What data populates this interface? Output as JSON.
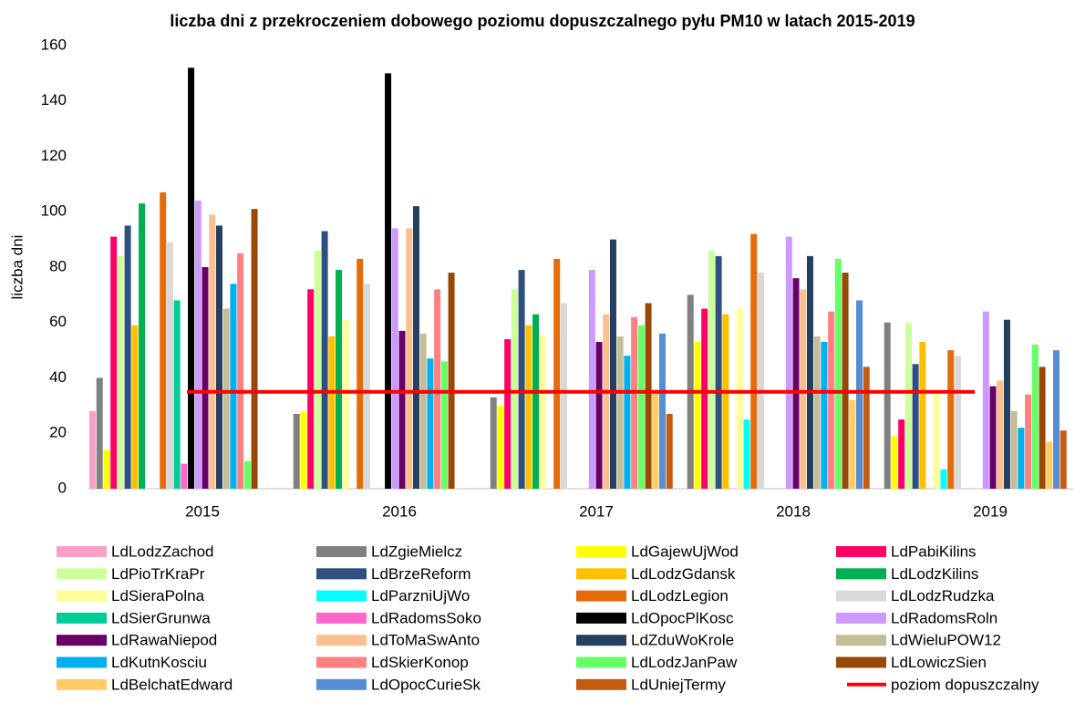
{
  "chart_data": {
    "type": "bar",
    "title": "liczba dni z przekroczeniem dobowego poziomu dopuszczalnego pyłu PM10 w latach 2015-2019",
    "ylabel": "liczba dni",
    "categories": [
      "2015",
      "2016",
      "2017",
      "2018",
      "2019"
    ],
    "ylim": [
      0,
      160
    ],
    "yticks": [
      0,
      20,
      40,
      60,
      80,
      100,
      120,
      140,
      160
    ],
    "grid": false,
    "series": [
      {
        "name": "LdLodzZachod",
        "color": "#f9a0c8",
        "values": [
          28,
          null,
          null,
          null,
          null
        ]
      },
      {
        "name": "LdZgieMielcz",
        "color": "#808080",
        "values": [
          40,
          27,
          33,
          70,
          60
        ]
      },
      {
        "name": "LdGajewUjWod",
        "color": "#ffff00",
        "values": [
          14,
          28,
          30,
          53,
          19
        ]
      },
      {
        "name": "LdPabiKilins",
        "color": "#ff0066",
        "values": [
          91,
          72,
          54,
          65,
          25
        ]
      },
      {
        "name": "LdPioTrKraPr",
        "color": "#ccff99",
        "values": [
          84,
          86,
          72,
          86,
          60
        ]
      },
      {
        "name": "LdBrzeReform",
        "color": "#2f4f7f",
        "values": [
          95,
          93,
          79,
          84,
          45
        ]
      },
      {
        "name": "LdLodzGdansk",
        "color": "#ffc000",
        "values": [
          59,
          55,
          59,
          63,
          53
        ]
      },
      {
        "name": "LdLodzKilins",
        "color": "#00b050",
        "values": [
          103,
          79,
          63,
          null,
          null
        ]
      },
      {
        "name": "LdSieraPolna",
        "color": "#ffff99",
        "values": [
          null,
          61,
          55,
          65,
          35
        ]
      },
      {
        "name": "LdParzniUjWo",
        "color": "#00ffff",
        "values": [
          null,
          null,
          null,
          25,
          7
        ]
      },
      {
        "name": "LdLodzLegion",
        "color": "#e46c0a",
        "values": [
          107,
          83,
          83,
          92,
          50
        ]
      },
      {
        "name": "LdLodzRudzka",
        "color": "#d9d9d9",
        "values": [
          89,
          74,
          67,
          78,
          48
        ]
      },
      {
        "name": "LdSierGrunwa",
        "color": "#00cc99",
        "values": [
          68,
          null,
          null,
          null,
          null
        ]
      },
      {
        "name": "LdRadomsSoko",
        "color": "#ff66cc",
        "values": [
          9,
          null,
          null,
          null,
          null
        ]
      },
      {
        "name": "LdOpocPlKosc",
        "color": "#000000",
        "values": [
          152,
          150,
          null,
          null,
          null
        ]
      },
      {
        "name": "LdRadomsRoln",
        "color": "#cc99ff",
        "values": [
          104,
          94,
          79,
          91,
          64
        ]
      },
      {
        "name": "LdRawaNiepod",
        "color": "#660066",
        "values": [
          80,
          57,
          53,
          76,
          37
        ]
      },
      {
        "name": "LdToMaSwAnto",
        "color": "#fac090",
        "values": [
          99,
          94,
          63,
          72,
          39
        ]
      },
      {
        "name": "LdZduWoKrole",
        "color": "#243f60",
        "values": [
          95,
          102,
          90,
          84,
          61
        ]
      },
      {
        "name": "LdWieluPOW12",
        "color": "#c4bd97",
        "values": [
          65,
          56,
          55,
          55,
          28
        ]
      },
      {
        "name": "LdKutnKosciu",
        "color": "#00b0f0",
        "values": [
          74,
          47,
          48,
          53,
          22
        ]
      },
      {
        "name": "LdSkierKonop",
        "color": "#ff8080",
        "values": [
          85,
          72,
          62,
          64,
          34
        ]
      },
      {
        "name": "LdLodzJanPaw",
        "color": "#66ff66",
        "values": [
          10,
          46,
          59,
          83,
          52
        ]
      },
      {
        "name": "LdLowiczSien",
        "color": "#984807",
        "values": [
          101,
          78,
          67,
          78,
          44
        ]
      },
      {
        "name": "LdBelchatEdward",
        "color": "#ffcc66",
        "values": [
          null,
          null,
          35,
          32,
          17
        ]
      },
      {
        "name": "LdOpocCurieSk",
        "color": "#558ed5",
        "values": [
          null,
          null,
          56,
          68,
          50
        ]
      },
      {
        "name": "LdUniejTermy",
        "color": "#c55a11",
        "values": [
          null,
          null,
          27,
          44,
          21
        ]
      },
      {
        "name": "poziom dopuszczalny",
        "color": "#ff0000",
        "type": "line",
        "values": [
          35,
          35,
          35,
          35,
          35
        ]
      }
    ]
  }
}
